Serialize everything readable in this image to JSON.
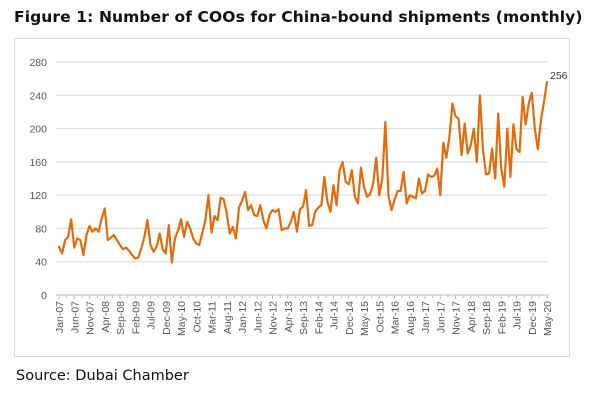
{
  "title": "Figure 1: Number of COOs for China-bound shipments (monthly)",
  "source": "Source: Dubai Chamber",
  "colors": {
    "line": "#E36C0A",
    "grid": "#d9d9d9",
    "axis": "#bfbfbf"
  },
  "chart_data": {
    "type": "line",
    "title": "Figure 1: Number of COOs for China-bound shipments (monthly)",
    "xlabel": "",
    "ylabel": "",
    "ylim": [
      0,
      280
    ],
    "yticks": [
      0,
      40,
      80,
      120,
      160,
      200,
      240,
      280
    ],
    "grid": true,
    "legend": "none",
    "x_start": "Jan-07",
    "x_end": "May-20",
    "xtick_labels": [
      "Jan-07",
      "Jun-07",
      "Nov-07",
      "Apr-08",
      "Sep-08",
      "Feb-09",
      "Jul-09",
      "Dec-09",
      "May-10",
      "Oct-10",
      "Mar-11",
      "Aug-11",
      "Jan-12",
      "Jun-12",
      "Nov-12",
      "Apr-13",
      "Sep-13",
      "Feb-14",
      "Jul-14",
      "Dec-14",
      "May-15",
      "Oct-15",
      "Mar-16",
      "Aug-16",
      "Jan-17",
      "Jun-17",
      "Nov-17",
      "Apr-18",
      "Sep-18",
      "Feb-19",
      "Jul-19",
      "Dec-19",
      "May-20"
    ],
    "xtick_interval_months": 5,
    "annotations": [
      {
        "label": "256",
        "point": "May-20",
        "value": 256
      }
    ],
    "series": [
      {
        "name": "Number of COOs",
        "values": [
          58,
          50,
          66,
          70,
          91,
          57,
          68,
          66,
          48,
          72,
          83,
          76,
          80,
          76,
          92,
          104,
          66,
          69,
          72,
          66,
          60,
          55,
          57,
          53,
          48,
          44,
          45,
          56,
          70,
          90,
          60,
          52,
          58,
          74,
          55,
          50,
          84,
          39,
          68,
          77,
          91,
          70,
          88,
          80,
          68,
          62,
          60,
          75,
          90,
          120,
          75,
          95,
          90,
          117,
          115,
          98,
          74,
          82,
          68,
          105,
          113,
          124,
          102,
          108,
          96,
          95,
          108,
          90,
          80,
          96,
          102,
          100,
          103,
          78,
          80,
          80,
          88,
          100,
          76,
          103,
          106,
          126,
          83,
          84,
          100,
          105,
          108,
          142,
          112,
          100,
          132,
          108,
          150,
          160,
          136,
          133,
          150,
          118,
          110,
          153,
          130,
          118,
          121,
          134,
          165,
          120,
          140,
          208,
          120,
          102,
          114,
          125,
          125,
          148,
          110,
          120,
          118,
          116,
          140,
          122,
          125,
          145,
          142,
          143,
          152,
          120,
          183,
          165,
          190,
          230,
          215,
          212,
          168,
          206,
          170,
          180,
          200,
          160,
          240,
          175,
          145,
          146,
          176,
          140,
          218,
          152,
          130,
          200,
          142,
          205,
          175,
          172,
          238,
          205,
          230,
          243,
          200,
          175,
          210,
          232,
          256
        ]
      }
    ]
  }
}
